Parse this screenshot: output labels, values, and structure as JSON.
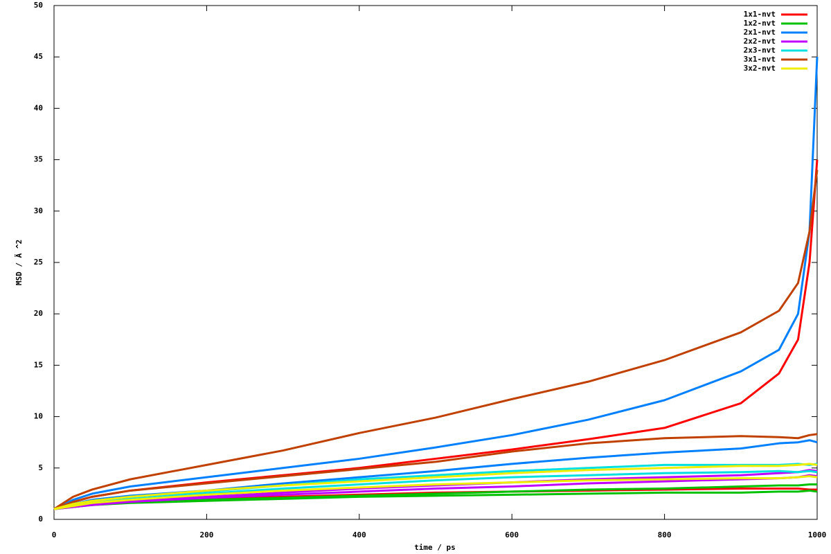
{
  "chart_data": {
    "type": "line",
    "xlabel": "time / ps",
    "ylabel": "MSD / Ã ^2",
    "x": [
      0,
      25,
      50,
      100,
      200,
      300,
      400,
      500,
      600,
      700,
      800,
      900,
      950,
      975,
      990,
      1000
    ],
    "series": [
      {
        "name": "1x1-nvt",
        "color": "#ff0000",
        "values": [
          1,
          1.7,
          2.2,
          2.8,
          3.6,
          4.3,
          5.0,
          5.9,
          6.8,
          7.8,
          8.9,
          11.3,
          14.2,
          17.5,
          25,
          35
        ]
      },
      {
        "color": "#ff0000",
        "values": [
          1,
          1.3,
          1.5,
          1.7,
          2.0,
          2.2,
          2.4,
          2.6,
          2.7,
          2.8,
          2.9,
          3.0,
          3.0,
          3.0,
          2.9,
          2.9
        ]
      },
      {
        "name": "1x2-nvt",
        "color": "#00c000",
        "values": [
          1,
          1.3,
          1.5,
          1.7,
          1.9,
          2.1,
          2.3,
          2.5,
          2.7,
          2.9,
          3.0,
          3.2,
          3.3,
          3.3,
          3.4,
          3.4
        ]
      },
      {
        "color": "#00c000",
        "values": [
          1,
          1.2,
          1.4,
          1.6,
          1.8,
          2.0,
          2.2,
          2.3,
          2.4,
          2.5,
          2.6,
          2.6,
          2.7,
          2.7,
          2.8,
          2.7
        ]
      },
      {
        "name": "2x1-nvt",
        "color": "#0080ff",
        "values": [
          1,
          1.9,
          2.5,
          3.2,
          4.1,
          5.0,
          5.9,
          7.0,
          8.2,
          9.7,
          11.6,
          14.4,
          16.5,
          20,
          28,
          45
        ]
      },
      {
        "color": "#0080ff",
        "values": [
          1,
          1.5,
          1.9,
          2.3,
          2.8,
          3.5,
          4.1,
          4.7,
          5.4,
          6.0,
          6.5,
          6.9,
          7.4,
          7.5,
          7.7,
          7.5
        ]
      },
      {
        "name": "2x2-nvt",
        "color": "#c000ff",
        "values": [
          1,
          1.3,
          1.5,
          1.8,
          2.2,
          2.6,
          3.0,
          3.3,
          3.6,
          3.9,
          4.1,
          4.3,
          4.5,
          4.6,
          4.8,
          4.7
        ]
      },
      {
        "color": "#c000ff",
        "values": [
          1,
          1.2,
          1.4,
          1.7,
          2.1,
          2.4,
          2.7,
          3.0,
          3.2,
          3.5,
          3.7,
          3.9,
          4.0,
          4.1,
          4.3,
          4.2
        ]
      },
      {
        "name": "2x3-nvt",
        "color": "#00e0e0",
        "values": [
          1,
          1.5,
          1.8,
          2.2,
          2.7,
          3.3,
          3.9,
          4.3,
          4.7,
          5.0,
          5.3,
          5.3,
          5.3,
          5.4,
          5.3,
          5.4
        ]
      },
      {
        "color": "#00e0e0",
        "values": [
          1,
          1.4,
          1.6,
          2.0,
          2.5,
          3.0,
          3.4,
          3.8,
          4.1,
          4.3,
          4.5,
          4.6,
          4.7,
          4.6,
          4.7,
          4.6
        ]
      },
      {
        "name": "3x1-nvt",
        "color": "#c04000",
        "values": [
          1,
          2.2,
          2.9,
          3.9,
          5.3,
          6.7,
          8.4,
          9.9,
          11.7,
          13.4,
          15.5,
          18.2,
          20.3,
          23,
          28,
          34
        ]
      },
      {
        "color": "#c04000",
        "values": [
          1,
          1.7,
          2.2,
          2.8,
          3.5,
          4.2,
          4.9,
          5.6,
          6.6,
          7.4,
          7.9,
          8.1,
          8.0,
          7.9,
          8.2,
          8.3
        ]
      },
      {
        "name": "3x2-nvt",
        "color": "#eeee00",
        "values": [
          1,
          1.5,
          1.8,
          2.2,
          2.8,
          3.3,
          3.7,
          4.1,
          4.5,
          4.8,
          5.0,
          5.2,
          5.2,
          5.3,
          5.4,
          5.3
        ]
      },
      {
        "color": "#eeee00",
        "values": [
          1,
          1.3,
          1.6,
          1.9,
          2.4,
          2.8,
          3.1,
          3.4,
          3.6,
          3.8,
          3.9,
          4.0,
          4.0,
          4.1,
          4.2,
          4.1
        ]
      }
    ],
    "xlim": [
      0,
      1000
    ],
    "xticks": [
      0,
      200,
      400,
      600,
      800,
      1000
    ],
    "ylim": [
      0,
      50
    ],
    "yticks": [
      0,
      5,
      10,
      15,
      20,
      25,
      30,
      35,
      40,
      45,
      50
    ],
    "legend": "upper right"
  }
}
